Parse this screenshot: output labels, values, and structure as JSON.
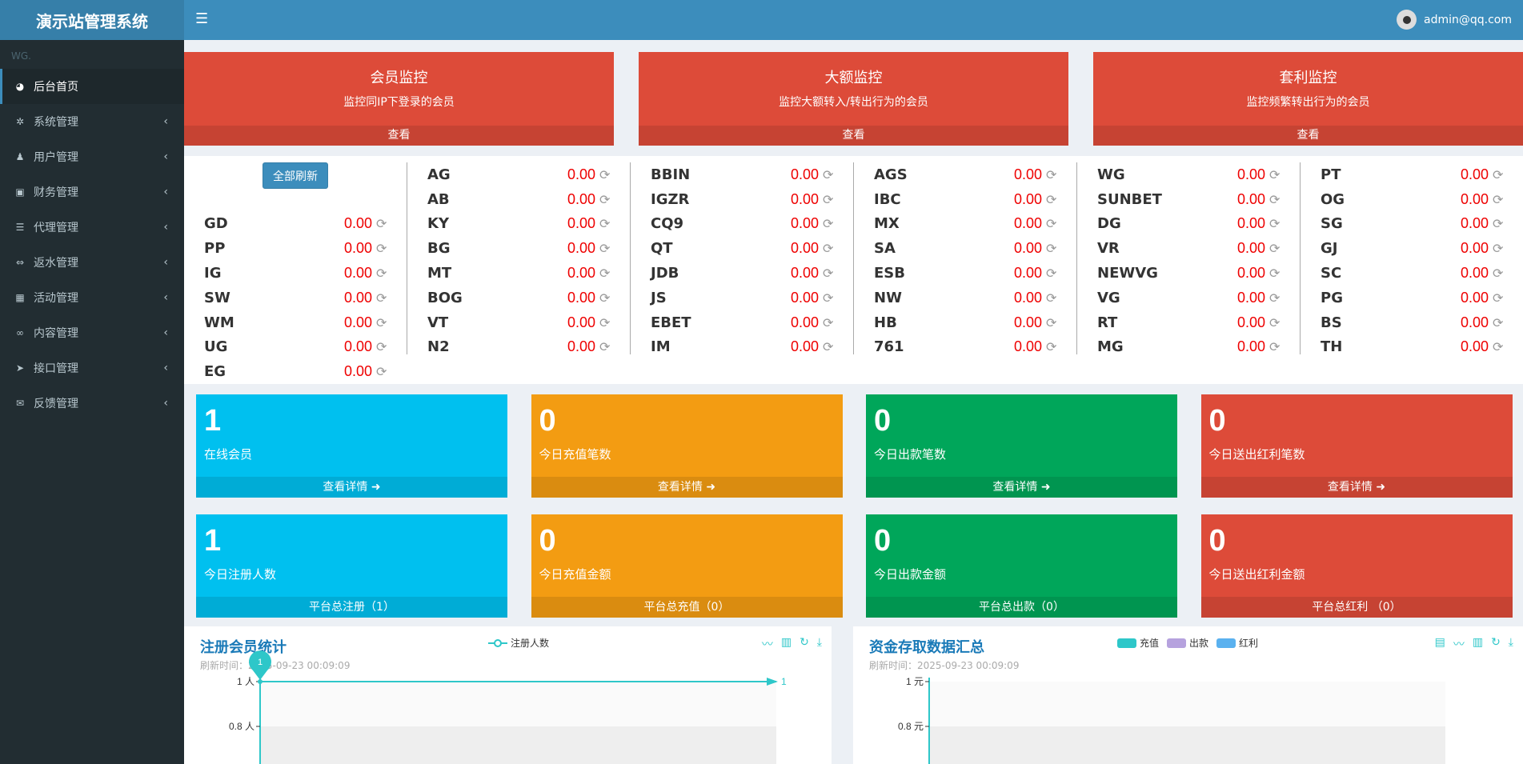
{
  "app": {
    "title": "演示站管理系统"
  },
  "header": {
    "user_email": "admin@qq.com"
  },
  "sidebar": {
    "user_panel": "WG.",
    "items": [
      {
        "label": "后台首页",
        "icon": "dashboard-icon"
      },
      {
        "label": "系统管理",
        "icon": "gear-icon"
      },
      {
        "label": "用户管理",
        "icon": "users-icon"
      },
      {
        "label": "财务管理",
        "icon": "money-icon"
      },
      {
        "label": "代理管理",
        "icon": "list-icon"
      },
      {
        "label": "返水管理",
        "icon": "exchange-icon"
      },
      {
        "label": "活动管理",
        "icon": "map-icon"
      },
      {
        "label": "内容管理",
        "icon": "link-icon"
      },
      {
        "label": "接口管理",
        "icon": "paper-plane-icon"
      },
      {
        "label": "反馈管理",
        "icon": "comment-icon"
      }
    ]
  },
  "monitors": [
    {
      "title": "会员监控",
      "desc": "监控同IP下登录的会员",
      "action": "查看"
    },
    {
      "title": "大额监控",
      "desc": "监控大额转入/转出行为的会员",
      "action": "查看"
    },
    {
      "title": "套利监控",
      "desc": "监控频繁转出行为的会员",
      "action": "查看"
    }
  ],
  "refresh_all": "全部刷新",
  "games": [
    [
      "GD",
      "PP",
      "IG",
      "SW",
      "WM",
      "UG",
      "EG"
    ],
    [
      "AG",
      "AB",
      "KY",
      "BG",
      "MT",
      "BOG",
      "VT",
      "N2"
    ],
    [
      "BBIN",
      "IGZR",
      "CQ9",
      "QT",
      "JDB",
      "JS",
      "EBET",
      "IM"
    ],
    [
      "AGS",
      "IBC",
      "MX",
      "SA",
      "ESB",
      "NW",
      "HB",
      "761"
    ],
    [
      "WG",
      "SUNBET",
      "DG",
      "VR",
      "NEWVG",
      "VG",
      "RT",
      "MG"
    ],
    [
      "PT",
      "OG",
      "SG",
      "GJ",
      "SC",
      "PG",
      "BS",
      "TH"
    ]
  ],
  "game_value": "0.00",
  "cards": [
    {
      "value": "1",
      "label": "在线会员",
      "foot": "查看详情 ➜",
      "color": "aqua"
    },
    {
      "value": "0",
      "label": "今日充值笔数",
      "foot": "查看详情 ➜",
      "color": "yellow"
    },
    {
      "value": "0",
      "label": "今日出款笔数",
      "foot": "查看详情 ➜",
      "color": "green"
    },
    {
      "value": "0",
      "label": "今日送出红利笔数",
      "foot": "查看详情 ➜",
      "color": "red"
    },
    {
      "value": "1",
      "label": "今日注册人数",
      "foot": "平台总注册（1）",
      "color": "aqua"
    },
    {
      "value": "0",
      "label": "今日充值金额",
      "foot": "平台总充值（0）",
      "color": "yellow"
    },
    {
      "value": "0",
      "label": "今日出款金额",
      "foot": "平台总出款（0）",
      "color": "green"
    },
    {
      "value": "0",
      "label": "今日送出红利金额",
      "foot": "平台总红利 （0）",
      "color": "red"
    }
  ],
  "chart_data": [
    {
      "type": "line",
      "title": "注册会员统计",
      "subtitle": "刷新时间：2025-09-23 00:09:09",
      "series": [
        {
          "name": "注册人数",
          "values": [
            1,
            1
          ]
        }
      ],
      "x": [
        "",
        ""
      ],
      "y_ticks": [
        "1 人",
        "0.8 人"
      ],
      "marker_label": "1",
      "end_label": "1",
      "color": "#2ec7c9"
    },
    {
      "type": "bar",
      "title": "资金存取数据汇总",
      "subtitle": "刷新时间：2025-09-23 00:09:09",
      "series": [
        {
          "name": "充值",
          "values": [],
          "color": "#2ec7c9"
        },
        {
          "name": "出款",
          "values": [],
          "color": "#b6a2de"
        },
        {
          "name": "红利",
          "values": [],
          "color": "#5ab1ef"
        }
      ],
      "y_ticks": [
        "1 元",
        "0.8 元"
      ]
    }
  ]
}
